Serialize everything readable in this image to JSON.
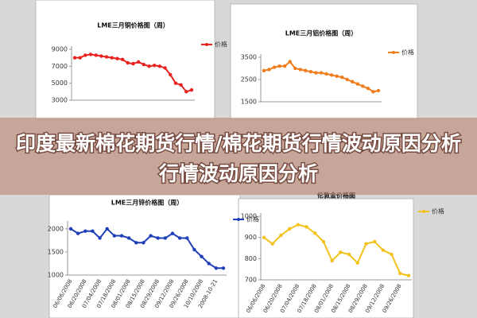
{
  "chart_data": [
    {
      "type": "line",
      "title": "LME三月铜价格图（周）",
      "ylim": [
        3000,
        9000
      ],
      "yticks": [
        3000,
        5000,
        7000,
        9000
      ],
      "series": [
        {
          "name": "价格",
          "color": "#e8231f",
          "values": [
            8000,
            8000,
            8300,
            8400,
            8300,
            8200,
            8100,
            8000,
            7900,
            7800,
            7400,
            7300,
            7500,
            7200,
            7000,
            7100,
            7000,
            6800,
            6000,
            5000,
            4800,
            4000,
            4200
          ]
        }
      ]
    },
    {
      "type": "line",
      "title": "LME三月铝价格图（周）",
      "ylim": [
        1500,
        3500
      ],
      "yticks": [
        1500,
        2500,
        3500
      ],
      "series": [
        {
          "name": "价格",
          "color": "#f07d1c",
          "values": [
            2900,
            2950,
            3050,
            3100,
            3100,
            3300,
            3000,
            2950,
            2900,
            2850,
            2800,
            2800,
            2750,
            2700,
            2650,
            2600,
            2500,
            2400,
            2300,
            2200,
            2100,
            1950,
            2000
          ]
        }
      ]
    },
    {
      "type": "line",
      "title": "LME三月锌价格图（周）",
      "ylim": [
        1000,
        2100
      ],
      "yticks": [
        1000,
        1500,
        2000
      ],
      "categories": [
        "06/06/2008",
        null,
        "06/20/2008",
        null,
        "07/04/2008",
        null,
        "07/18/2008",
        null,
        "08/01/2008",
        null,
        "08/15/2008",
        null,
        "08/29/2008",
        null,
        "09/12/2008",
        null,
        "09/26/2008",
        null,
        "10/10/2008",
        null,
        "2008-10-21",
        null
      ],
      "series": [
        {
          "name": "价格",
          "color": "#1f3fb8",
          "values": [
            2000,
            1900,
            1950,
            1950,
            1800,
            2000,
            1850,
            1850,
            1800,
            1700,
            1700,
            1850,
            1800,
            1800,
            1900,
            1800,
            1800,
            1550,
            1400,
            1250,
            1150,
            1150
          ]
        }
      ]
    },
    {
      "type": "line",
      "title": "伦敦金价格图",
      "ylim": [
        700,
        1000
      ],
      "yticks": [
        700,
        800,
        900,
        1000
      ],
      "categories": [
        "06/06/2008",
        null,
        "06/20/2008",
        null,
        "07/04/2008",
        null,
        "07/18/2008",
        null,
        "08/01/2008",
        null,
        "08/15/2008",
        null,
        "08/29/2008",
        null,
        "09/12/2008",
        null,
        "09/26/2008",
        null
      ],
      "series": [
        {
          "name": "价格",
          "color": "#f2c21a",
          "values": [
            900,
            870,
            910,
            940,
            960,
            950,
            920,
            880,
            790,
            830,
            820,
            780,
            870,
            880,
            840,
            820,
            730,
            720
          ]
        }
      ]
    }
  ],
  "banner": {
    "line1": "印度最新棉花期货行情/棉花期货行情波动原因分析",
    "line2": "行情波动原因分析"
  }
}
